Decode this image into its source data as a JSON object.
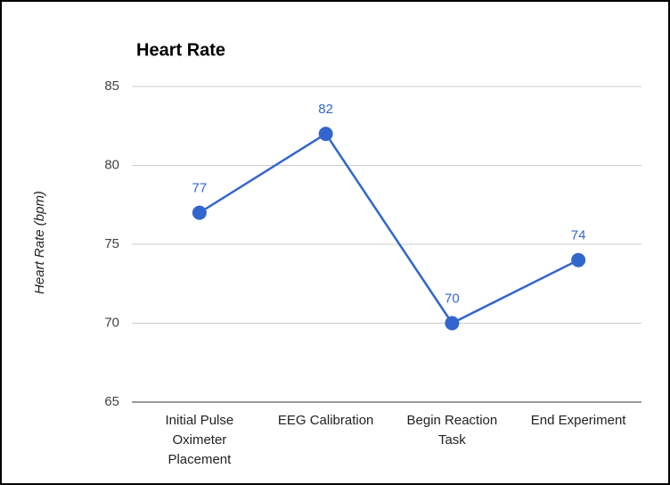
{
  "chart_data": {
    "type": "line",
    "title": "Heart Rate",
    "y_label": "Heart Rate (bpm)",
    "categories": [
      "Initial Pulse Oximeter Placement",
      "EEG Calibration",
      "Begin Reaction Task",
      "End Experiment"
    ],
    "values": [
      77,
      82,
      70,
      74
    ],
    "color": "#3366cc",
    "ylim": [
      65,
      85
    ],
    "yticks": [
      65,
      70,
      75,
      80,
      85
    ],
    "grid": true
  }
}
